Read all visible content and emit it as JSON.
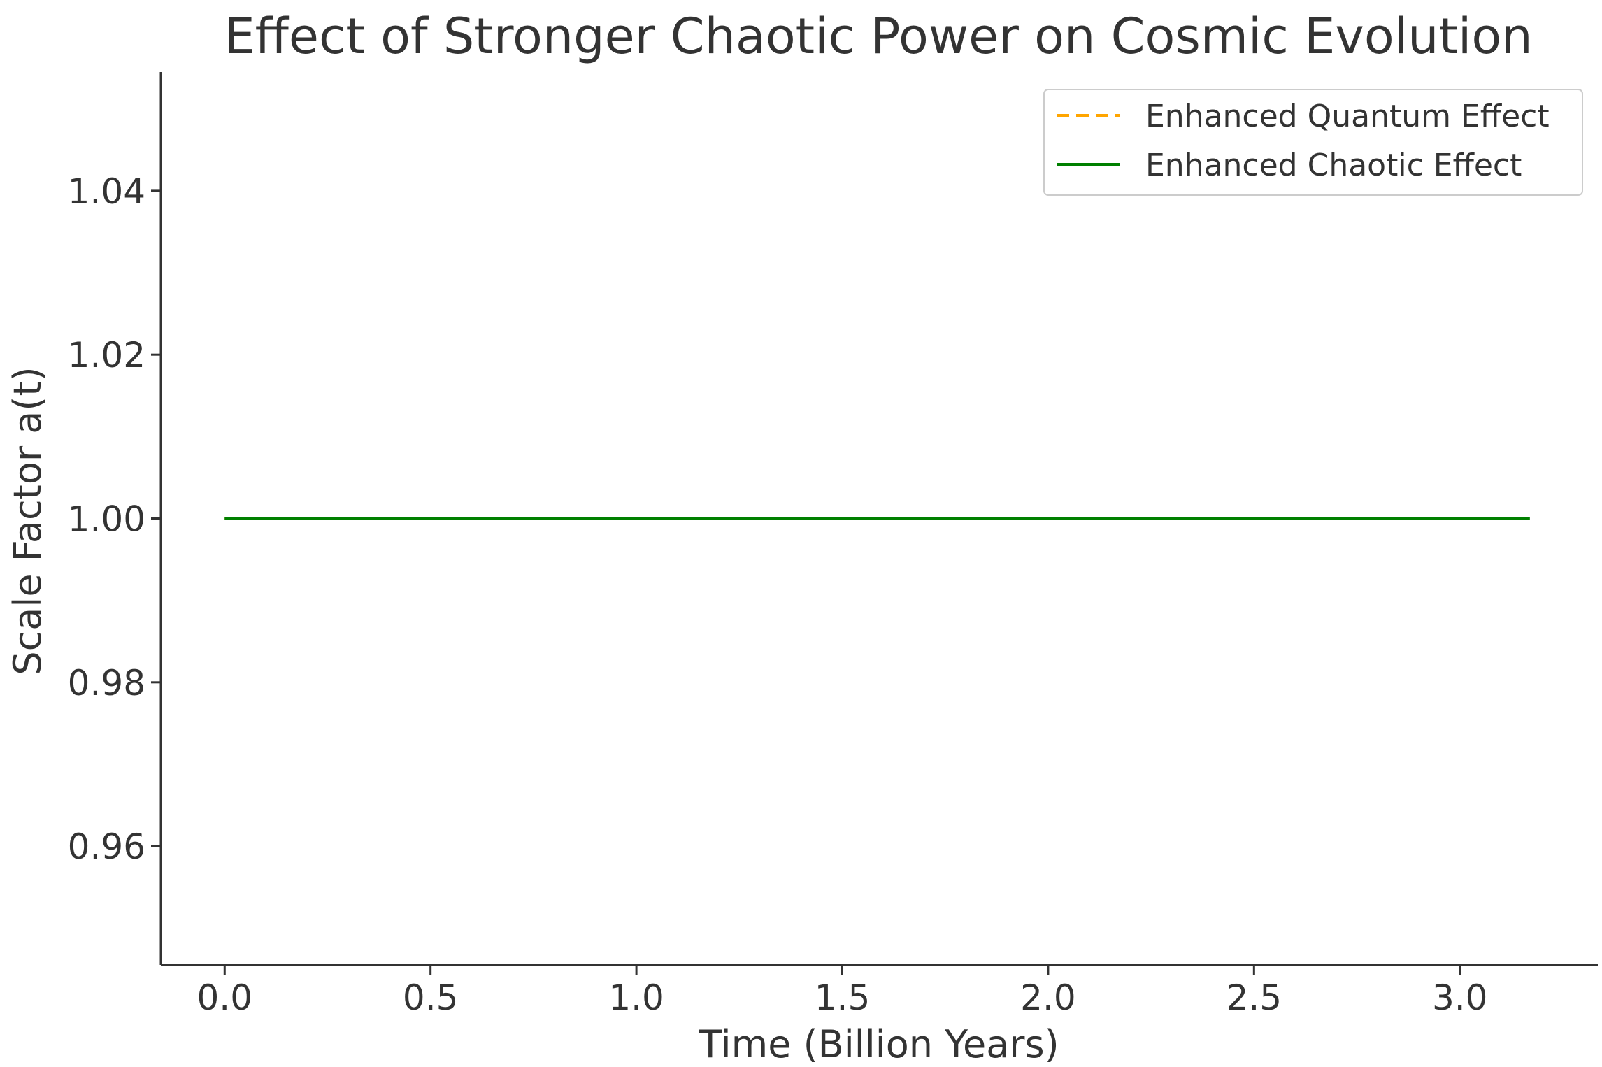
{
  "chart_data": {
    "type": "line",
    "title": "Effect of Stronger Chaotic Power on Cosmic Evolution",
    "xlabel": "Time (Billion Years)",
    "ylabel": "Scale Factor a(t)",
    "xlim": [
      -0.155,
      3.335
    ],
    "ylim": [
      0.9455,
      1.0545
    ],
    "xticks": [
      0.0,
      0.5,
      1.0,
      1.5,
      2.0,
      2.5,
      3.0
    ],
    "xtick_labels": [
      "0.0",
      "0.5",
      "1.0",
      "1.5",
      "2.0",
      "2.5",
      "3.0"
    ],
    "yticks": [
      0.96,
      0.98,
      1.0,
      1.02,
      1.04
    ],
    "ytick_labels": [
      "0.96",
      "0.98",
      "1.00",
      "1.02",
      "1.04"
    ],
    "grid": false,
    "legend_position": "top-right",
    "series": [
      {
        "name": "Enhanced Quantum Effect",
        "color": "#FFA500",
        "style": "dashed",
        "x": [
          0.0,
          3.17
        ],
        "y": [
          1.0,
          1.0
        ]
      },
      {
        "name": "Enhanced Chaotic Effect",
        "color": "#008000",
        "style": "solid",
        "x": [
          0.0,
          3.17
        ],
        "y": [
          1.0,
          1.0
        ]
      }
    ]
  }
}
